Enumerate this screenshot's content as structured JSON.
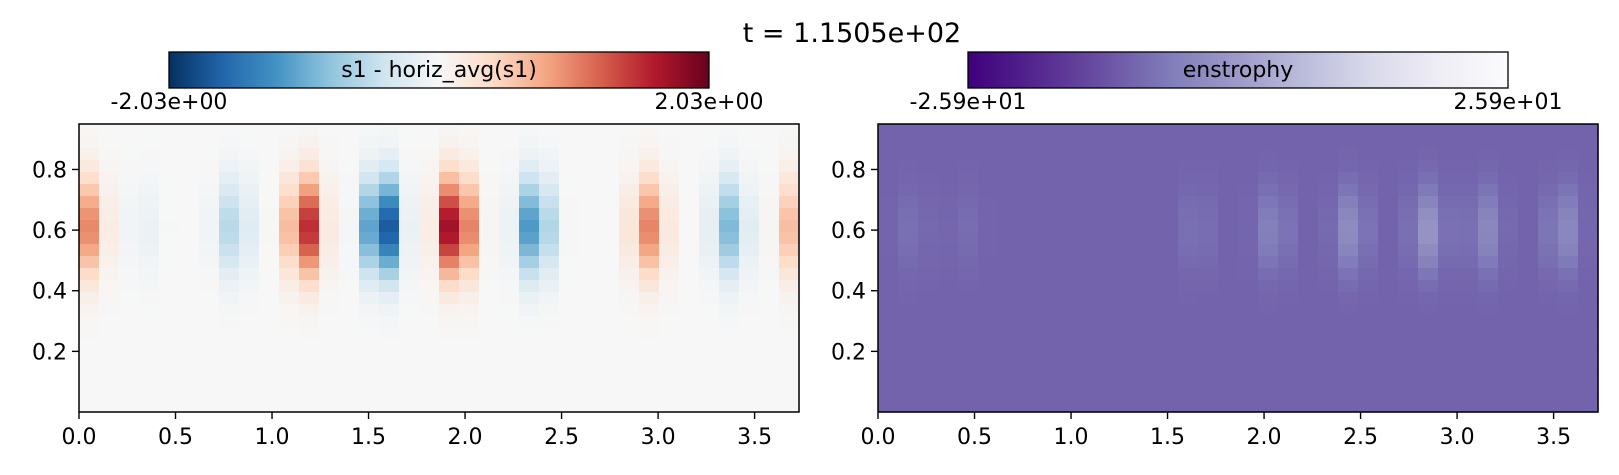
{
  "figure": {
    "title": "t = 1.1505e+02"
  },
  "colors": {
    "rdbu": [
      "#053061",
      "#2166ac",
      "#4393c3",
      "#92c5de",
      "#d1e5f0",
      "#f7f7f7",
      "#fddbc7",
      "#f4a582",
      "#d6604d",
      "#b2182b",
      "#67001f"
    ],
    "purples": [
      "#3f007d",
      "#54278f",
      "#6a51a3",
      "#807dba",
      "#9e9ac8",
      "#bcbddc",
      "#dadaeb",
      "#efedf5",
      "#fcfbfd"
    ]
  },
  "chart_data": [
    {
      "type": "heatmap",
      "title": "s1 - horiz_avg(s1)",
      "colormap": "RdBu_r",
      "colorbar": {
        "label": "s1 - horiz_avg(s1)",
        "min_label": "-2.03e+00",
        "max_label": "2.03e+00",
        "vmin": -2.03,
        "vmax": 2.03,
        "placement": "top"
      },
      "xlim": [
        0,
        3.73
      ],
      "ylim": [
        0,
        0.95
      ],
      "xticks": [
        0.0,
        0.5,
        1.0,
        1.5,
        2.0,
        2.5,
        3.0,
        3.5
      ],
      "xtick_labels": [
        "0.0",
        "0.5",
        "1.0",
        "1.5",
        "2.0",
        "2.5",
        "3.0",
        "3.5"
      ],
      "yticks": [
        0.2,
        0.4,
        0.6,
        0.8
      ],
      "ytick_labels": [
        "0.2",
        "0.4",
        "0.6",
        "0.8"
      ],
      "grid": false,
      "field": {
        "vertical_center": 0.61,
        "vertical_width": 0.16,
        "cells": [
          {
            "x": 0.04,
            "amp": 1.0
          },
          {
            "x": 0.33,
            "amp": -0.15
          },
          {
            "x": 0.8,
            "amp": -0.6
          },
          {
            "x": 1.17,
            "amp": 1.6
          },
          {
            "x": 1.57,
            "amp": -2.03
          },
          {
            "x": 1.95,
            "amp": 2.0
          },
          {
            "x": 2.36,
            "amp": -1.3
          },
          {
            "x": 2.95,
            "amp": 1.0
          },
          {
            "x": 3.37,
            "amp": -0.9
          },
          {
            "x": 3.73,
            "amp": 0.9
          }
        ]
      }
    },
    {
      "type": "heatmap",
      "title": "enstrophy",
      "colormap": "Purples_r",
      "colorbar": {
        "label": "enstrophy",
        "min_label": "-2.59e+01",
        "max_label": "2.59e+01",
        "vmin": -25.9,
        "vmax": 25.9,
        "placement": "top"
      },
      "xlim": [
        0,
        3.73
      ],
      "ylim": [
        0,
        0.95
      ],
      "xticks": [
        0.0,
        0.5,
        1.0,
        1.5,
        2.0,
        2.5,
        3.0,
        3.5
      ],
      "xtick_labels": [
        "0.0",
        "0.5",
        "1.0",
        "1.5",
        "2.0",
        "2.5",
        "3.0",
        "3.5"
      ],
      "yticks": [
        0.2,
        0.4,
        0.6,
        0.8
      ],
      "ytick_labels": [
        "0.2",
        "0.4",
        "0.6",
        "0.8"
      ],
      "grid": false,
      "field": {
        "background": 0.3,
        "vertical_center": 0.6,
        "vertical_width": 0.14,
        "cells": [
          {
            "x": 0.18,
            "amp": 0.4
          },
          {
            "x": 0.45,
            "amp": 0.3
          },
          {
            "x": 1.65,
            "amp": 0.5
          },
          {
            "x": 2.05,
            "amp": 1.0
          },
          {
            "x": 2.45,
            "amp": 1.4
          },
          {
            "x": 2.85,
            "amp": 1.7
          },
          {
            "x": 3.15,
            "amp": 1.2
          },
          {
            "x": 3.55,
            "amp": 1.3
          }
        ]
      }
    }
  ]
}
